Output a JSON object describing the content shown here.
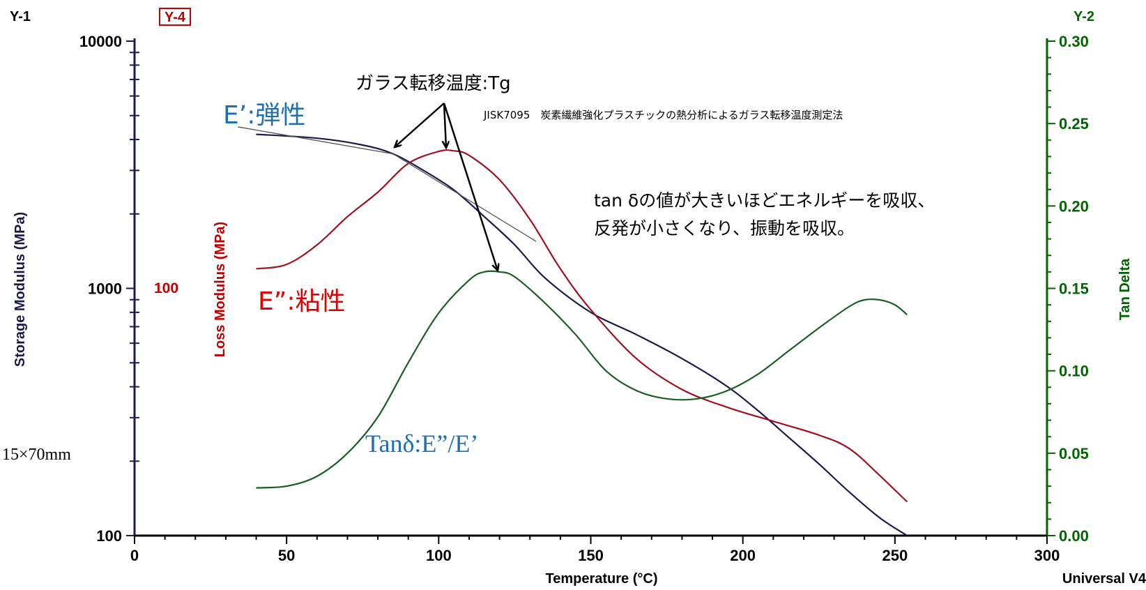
{
  "chart_data": {
    "type": "line",
    "xlabel": "Temperature (°C)",
    "x_ticks": [
      "0",
      "50",
      "100",
      "150",
      "200",
      "250",
      "300"
    ],
    "xlim": [
      0,
      300
    ],
    "y1": {
      "header": "Y-1",
      "label": "Storage Modulus (MPa)",
      "scale": "log",
      "lim": [
        100,
        10000
      ],
      "ticks": [
        "100",
        "1000",
        "10000"
      ],
      "color": "#1a1a4d"
    },
    "y4": {
      "header": "Y-4",
      "label": "Loss Modulus (MPa)",
      "tick": "100",
      "color": "#c00000"
    },
    "y2": {
      "header": "Y-2",
      "label": "Tan Delta",
      "scale": "linear",
      "lim": [
        0,
        0.3
      ],
      "ticks": [
        "0.00",
        "0.05",
        "0.10",
        "0.15",
        "0.20",
        "0.25",
        "0.30"
      ],
      "color": "#006400"
    },
    "footer": "Universal V4",
    "series": [
      {
        "name": "E'",
        "axis": "y1",
        "color": "#1a1a4d",
        "x": [
          40,
          60,
          75,
          85,
          95,
          105,
          115,
          125,
          135,
          150,
          165,
          180,
          195,
          205,
          215,
          225,
          235,
          245,
          254
        ],
        "values": [
          4200,
          4050,
          3800,
          3500,
          3000,
          2500,
          1950,
          1500,
          1100,
          800,
          650,
          520,
          400,
          320,
          250,
          195,
          150,
          118,
          100
        ]
      },
      {
        "name": "E''",
        "axis": "y1",
        "color": "#a01020",
        "x": [
          40,
          50,
          60,
          70,
          80,
          90,
          100,
          105,
          110,
          120,
          130,
          140,
          150,
          165,
          180,
          195,
          210,
          225,
          235,
          245,
          254
        ],
        "values": [
          1200,
          1250,
          1500,
          1950,
          2450,
          3200,
          3580,
          3600,
          3450,
          2750,
          1900,
          1200,
          820,
          520,
          390,
          330,
          290,
          255,
          225,
          175,
          137
        ]
      },
      {
        "name": "tanδ",
        "axis": "y2",
        "color": "#1a5e20",
        "x": [
          40,
          50,
          60,
          70,
          80,
          90,
          100,
          110,
          115,
          120,
          125,
          135,
          145,
          155,
          165,
          175,
          185,
          195,
          205,
          215,
          225,
          235,
          240,
          245,
          250,
          254
        ],
        "values": [
          0.029,
          0.03,
          0.036,
          0.05,
          0.072,
          0.105,
          0.135,
          0.155,
          0.16,
          0.16,
          0.157,
          0.141,
          0.122,
          0.1,
          0.088,
          0.083,
          0.083,
          0.088,
          0.098,
          0.112,
          0.126,
          0.139,
          0.143,
          0.143,
          0.14,
          0.134
        ]
      },
      {
        "name": "tangent",
        "axis": "y1",
        "color": "#555555",
        "x": [
          34,
          85,
          132
        ],
        "values": [
          4500,
          3500,
          1550
        ]
      }
    ],
    "annotations": {
      "tg_label": "ガラス転移温度:Tg",
      "standard": "JISK7095　炭素繊維強化プラスチックの熱分析によるガラス転移温度測定法",
      "e_prime": "E’:弾性",
      "e_double_prime": "E”:粘性",
      "tan_delta": "Tanδ:E”/E’",
      "note_line1": "tan δの値が大きいほどエネルギーを吸収、",
      "note_line2": "反発が小さくなり、振動を吸収。",
      "specimen": "15×70mm"
    }
  }
}
